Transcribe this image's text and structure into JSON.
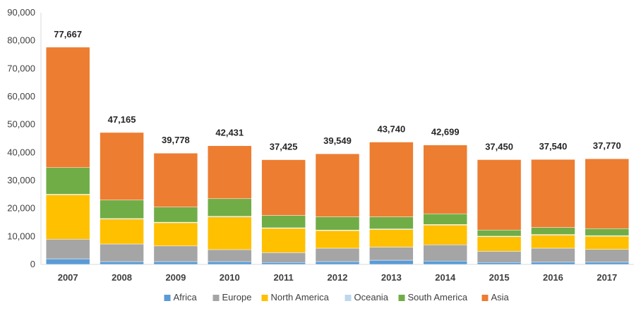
{
  "chart_data": {
    "type": "bar",
    "stacked": true,
    "categories": [
      "2007",
      "2008",
      "2009",
      "2010",
      "2011",
      "2012",
      "2013",
      "2014",
      "2015",
      "2016",
      "2017"
    ],
    "series": [
      {
        "name": "Africa",
        "color": "#5B9BD5",
        "values": [
          2000,
          1000,
          1000,
          1000,
          700,
          1000,
          1500,
          1200,
          700,
          800,
          800
        ]
      },
      {
        "name": "Europe",
        "color": "#A5A5A5",
        "values": [
          7000,
          6300,
          5600,
          4300,
          3500,
          4800,
          4700,
          5800,
          4000,
          5000,
          4600
        ]
      },
      {
        "name": "North America",
        "color": "#FFC000",
        "values": [
          15900,
          8900,
          8300,
          11700,
          8700,
          6300,
          6300,
          7100,
          5200,
          4700,
          4700
        ]
      },
      {
        "name": "Oceania",
        "color": "#BDD7EE",
        "values": [
          200,
          200,
          200,
          200,
          200,
          200,
          200,
          200,
          200,
          200,
          200
        ]
      },
      {
        "name": "South America",
        "color": "#70AD47",
        "values": [
          9500,
          6600,
          5400,
          6300,
          4400,
          4700,
          4300,
          3800,
          2200,
          2500,
          2500
        ]
      },
      {
        "name": "Asia",
        "color": "#ED7D31",
        "values": [
          43067,
          24165,
          19278,
          18931,
          19925,
          22549,
          26740,
          24599,
          25150,
          24340,
          24970
        ]
      }
    ],
    "totals": [
      "77,667",
      "47,165",
      "39,778",
      "42,431",
      "37,425",
      "39,549",
      "43,740",
      "42,699",
      "37,450",
      "37,540",
      "37,770"
    ],
    "yticks": [
      "0",
      "10,000",
      "20,000",
      "30,000",
      "40,000",
      "50,000",
      "60,000",
      "70,000",
      "80,000",
      "90,000"
    ],
    "ylim": [
      0,
      90000
    ],
    "title": "",
    "xlabel": "",
    "ylabel": "",
    "grid": false,
    "legend_position": "bottom"
  }
}
